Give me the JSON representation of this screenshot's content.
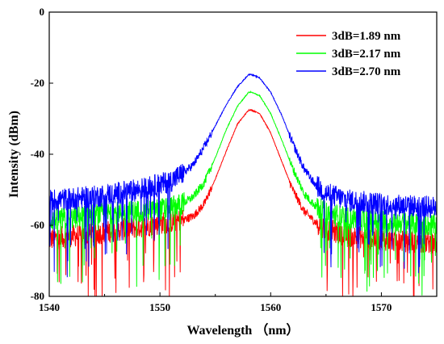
{
  "chart_data": {
    "type": "line",
    "title": "",
    "xlabel": "Wavelength （nm）",
    "ylabel": "Intensity (dBm)",
    "xlim": [
      1540,
      1575
    ],
    "ylim": [
      -80,
      0
    ],
    "x_ticks": [
      1540,
      1550,
      1560,
      1570
    ],
    "y_ticks": [
      0,
      -20,
      -40,
      -60,
      -80
    ],
    "grid": false,
    "legend_position": "top-right",
    "series": [
      {
        "name": "3dB=1.89 nm",
        "color": "#ff0000",
        "peak_x": 1558.2,
        "peak_y": -27.5,
        "noise_floor_y": -63,
        "points": [
          [
            1540,
            -64
          ],
          [
            1542,
            -63
          ],
          [
            1544,
            -62.5
          ],
          [
            1546,
            -61.5
          ],
          [
            1548,
            -60.5
          ],
          [
            1550,
            -59.5
          ],
          [
            1551,
            -59
          ],
          [
            1552,
            -58.5
          ],
          [
            1553,
            -57.5
          ],
          [
            1554,
            -54
          ],
          [
            1555,
            -47
          ],
          [
            1556,
            -39
          ],
          [
            1557,
            -31.5
          ],
          [
            1558,
            -27.6
          ],
          [
            1558.2,
            -27.5
          ],
          [
            1559,
            -28.5
          ],
          [
            1560,
            -34
          ],
          [
            1561,
            -42
          ],
          [
            1562,
            -50
          ],
          [
            1563,
            -56
          ],
          [
            1564,
            -59
          ],
          [
            1565,
            -61
          ],
          [
            1567,
            -63
          ],
          [
            1570,
            -64
          ],
          [
            1575,
            -65
          ]
        ]
      },
      {
        "name": "3dB=2.17 nm",
        "color": "#00ff00",
        "peak_x": 1558.2,
        "peak_y": -22.5,
        "noise_floor_y": -58,
        "points": [
          [
            1540,
            -58.5
          ],
          [
            1542,
            -58
          ],
          [
            1544,
            -57
          ],
          [
            1546,
            -56.5
          ],
          [
            1548,
            -56
          ],
          [
            1550,
            -55.5
          ],
          [
            1551,
            -55
          ],
          [
            1552,
            -54
          ],
          [
            1553,
            -52
          ],
          [
            1554,
            -48
          ],
          [
            1555,
            -41
          ],
          [
            1556,
            -33
          ],
          [
            1557,
            -26.5
          ],
          [
            1558,
            -22.6
          ],
          [
            1558.2,
            -22.5
          ],
          [
            1559,
            -23.5
          ],
          [
            1560,
            -28.5
          ],
          [
            1561,
            -36
          ],
          [
            1562,
            -44
          ],
          [
            1563,
            -51
          ],
          [
            1564,
            -54.5
          ],
          [
            1565,
            -56.5
          ],
          [
            1567,
            -58
          ],
          [
            1570,
            -59
          ],
          [
            1575,
            -60
          ]
        ]
      },
      {
        "name": "3dB=2.70 nm",
        "color": "#0000ff",
        "peak_x": 1558.2,
        "peak_y": -17.5,
        "noise_floor_y": -53,
        "points": [
          [
            1540,
            -53
          ],
          [
            1542,
            -52.5
          ],
          [
            1544,
            -52
          ],
          [
            1546,
            -51
          ],
          [
            1548,
            -50
          ],
          [
            1550,
            -48.5
          ],
          [
            1551,
            -47.5
          ],
          [
            1552,
            -45.5
          ],
          [
            1553,
            -43
          ],
          [
            1554,
            -38
          ],
          [
            1555,
            -32
          ],
          [
            1556,
            -26
          ],
          [
            1557,
            -21
          ],
          [
            1558,
            -17.6
          ],
          [
            1558.2,
            -17.5
          ],
          [
            1559,
            -18.5
          ],
          [
            1560,
            -22.5
          ],
          [
            1561,
            -29
          ],
          [
            1562,
            -37
          ],
          [
            1563,
            -44
          ],
          [
            1564,
            -48.5
          ],
          [
            1565,
            -51
          ],
          [
            1567,
            -53
          ],
          [
            1570,
            -54
          ],
          [
            1575,
            -55
          ]
        ]
      }
    ]
  }
}
